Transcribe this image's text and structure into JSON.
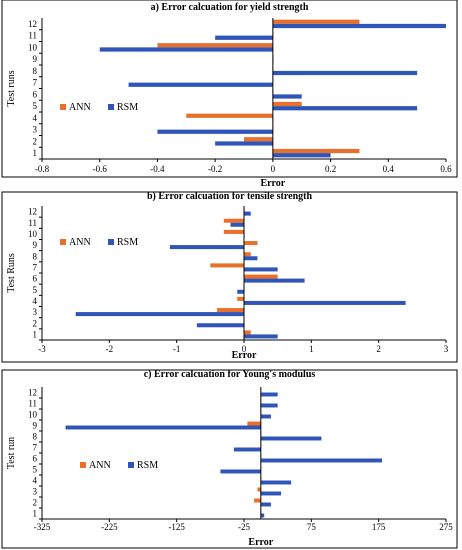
{
  "colors": {
    "ann": "#e8702a",
    "rsm": "#2f55b8",
    "axis": "#000000",
    "frame": "#000000"
  },
  "chart_data": [
    {
      "type": "bar",
      "orientation": "horizontal",
      "title": "a) Error calcuation for yield strength",
      "xlabel": "Error",
      "ylabel": "Test runs",
      "categories": [
        "1",
        "2",
        "3",
        "4",
        "5",
        "6",
        "7",
        "8",
        "9",
        "10",
        "11",
        "12"
      ],
      "xlim": [
        -0.8,
        0.6
      ],
      "xticks": [
        "-0.8",
        "-0.6",
        "-0.4",
        "-0.2",
        "0",
        "0.2",
        "0.4",
        "0.6"
      ],
      "xtick_values": [
        -0.8,
        -0.6,
        -0.4,
        -0.2,
        0,
        0.2,
        0.4,
        0.6
      ],
      "legend": "left",
      "series": [
        {
          "name": "ANN",
          "values": [
            0.3,
            -0.1,
            0.0,
            -0.3,
            0.1,
            0.0,
            0.0,
            0.0,
            0.0,
            -0.4,
            0.0,
            0.3
          ]
        },
        {
          "name": "RSM",
          "values": [
            0.2,
            -0.2,
            -0.4,
            0.0,
            0.5,
            0.1,
            -0.5,
            0.5,
            0.0,
            -0.6,
            -0.2,
            0.6
          ]
        }
      ]
    },
    {
      "type": "bar",
      "orientation": "horizontal",
      "title": "b) Error calcuation for tensile strength",
      "xlabel": "Error",
      "ylabel": "Test Runs",
      "categories": [
        "1",
        "2",
        "3",
        "4",
        "5",
        "6",
        "7",
        "8",
        "9",
        "10",
        "11",
        "12"
      ],
      "xlim": [
        -3,
        3
      ],
      "xticks": [
        "-3",
        "-2",
        "-1",
        "0",
        "1",
        "2",
        "3"
      ],
      "xtick_values": [
        -3,
        -2,
        -1,
        0,
        1,
        2,
        3
      ],
      "legend": "left",
      "series": [
        {
          "name": "ANN",
          "values": [
            0.1,
            0.0,
            -0.4,
            -0.1,
            0.0,
            0.5,
            -0.5,
            0.1,
            0.2,
            -0.3,
            -0.3,
            0.0
          ]
        },
        {
          "name": "RSM",
          "values": [
            0.5,
            -0.7,
            -2.5,
            2.4,
            -0.1,
            0.9,
            0.5,
            0.2,
            -1.1,
            0.0,
            -0.2,
            0.1
          ]
        }
      ]
    },
    {
      "type": "bar",
      "orientation": "horizontal",
      "title": "c) Error calcuation for Young's modulus",
      "xlabel": "Error",
      "ylabel": "Test run",
      "categories": [
        "1",
        "2",
        "3",
        "4",
        "5",
        "6",
        "7",
        "8",
        "9",
        "10",
        "11",
        "12"
      ],
      "xlim": [
        -325,
        275
      ],
      "xticks": [
        "-325",
        "-225",
        "-125",
        "-25",
        "75",
        "175",
        "275"
      ],
      "xtick_values": [
        -325,
        -225,
        -125,
        -25,
        75,
        175,
        275
      ],
      "legend": "left",
      "series": [
        {
          "name": "ANN",
          "values": [
            0,
            -10,
            -5,
            0,
            0,
            0,
            0,
            0,
            -20,
            0,
            0,
            0
          ]
        },
        {
          "name": "RSM",
          "values": [
            5,
            15,
            30,
            45,
            -60,
            180,
            -40,
            90,
            -290,
            15,
            25,
            25
          ]
        }
      ]
    }
  ]
}
